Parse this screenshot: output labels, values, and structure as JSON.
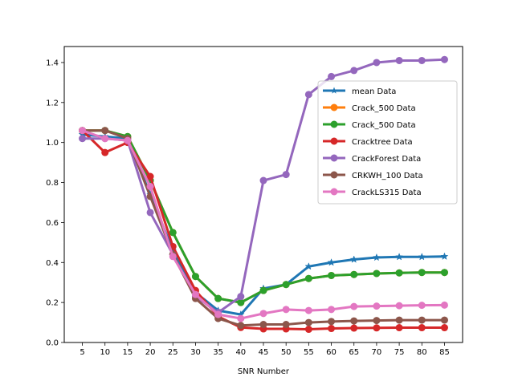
{
  "chart_data": {
    "type": "line",
    "xlabel": "SNR Number",
    "ylabel": "",
    "title": "",
    "xlim": [
      1.0,
      89.0
    ],
    "ylim": [
      0.0,
      1.48
    ],
    "x": [
      5,
      10,
      15,
      20,
      25,
      30,
      35,
      40,
      45,
      50,
      55,
      60,
      65,
      70,
      75,
      80,
      85
    ],
    "xticks": [
      5,
      10,
      15,
      20,
      25,
      30,
      35,
      40,
      45,
      50,
      55,
      60,
      65,
      70,
      75,
      80,
      85
    ],
    "yticks": [
      0.0,
      0.2,
      0.4,
      0.6,
      0.8,
      1.0,
      1.2,
      1.4
    ],
    "ytick_labels": [
      "0.0",
      "0.2",
      "0.4",
      "0.6",
      "0.8",
      "1.0",
      "1.2",
      "1.4"
    ],
    "grid": false,
    "legend_position": "center-right",
    "series": [
      {
        "name": "mean Data",
        "color": "#1f77b4",
        "marker": "star",
        "values": [
          1.04,
          1.03,
          1.02,
          0.74,
          0.46,
          0.25,
          0.16,
          0.14,
          0.27,
          0.29,
          0.38,
          0.4,
          0.415,
          0.425,
          0.428,
          0.428,
          0.43
        ]
      },
      {
        "name": "Crack_500 Data",
        "color": "#ff7f0e",
        "marker": "circle",
        "values": [
          1.06,
          1.06,
          1.03,
          0.81,
          0.55,
          0.33,
          0.22,
          0.2,
          0.26,
          0.29,
          0.32,
          0.335,
          0.34,
          0.345,
          0.348,
          0.35,
          0.35
        ]
      },
      {
        "name": "Crack_500 Data",
        "color": "#2ca02c",
        "marker": "circle",
        "values": [
          1.06,
          1.06,
          1.03,
          0.81,
          0.55,
          0.33,
          0.22,
          0.2,
          0.26,
          0.29,
          0.32,
          0.335,
          0.34,
          0.345,
          0.348,
          0.35,
          0.35
        ]
      },
      {
        "name": "Cracktree Data",
        "color": "#d62728",
        "marker": "circle",
        "values": [
          1.06,
          0.95,
          1.0,
          0.83,
          0.48,
          0.26,
          0.13,
          0.075,
          0.068,
          0.068,
          0.066,
          0.07,
          0.072,
          0.073,
          0.074,
          0.074,
          0.074
        ]
      },
      {
        "name": "CrackForest Data",
        "color": "#9467bd",
        "marker": "circle",
        "values": [
          1.02,
          1.02,
          1.01,
          0.65,
          0.44,
          0.23,
          0.15,
          0.23,
          0.81,
          0.84,
          1.24,
          1.33,
          1.36,
          1.4,
          1.41,
          1.41,
          1.415
        ]
      },
      {
        "name": "CRKWH_100 Data",
        "color": "#8c564b",
        "marker": "circle",
        "values": [
          1.06,
          1.06,
          1.02,
          0.73,
          0.44,
          0.22,
          0.12,
          0.085,
          0.09,
          0.09,
          0.1,
          0.105,
          0.108,
          0.11,
          0.112,
          0.112,
          0.112
        ]
      },
      {
        "name": "CrackLS315 Data",
        "color": "#e377c2",
        "marker": "circle",
        "values": [
          1.06,
          1.02,
          1.01,
          0.78,
          0.43,
          0.24,
          0.14,
          0.12,
          0.145,
          0.165,
          0.16,
          0.165,
          0.18,
          0.182,
          0.184,
          0.186,
          0.187
        ]
      }
    ]
  }
}
